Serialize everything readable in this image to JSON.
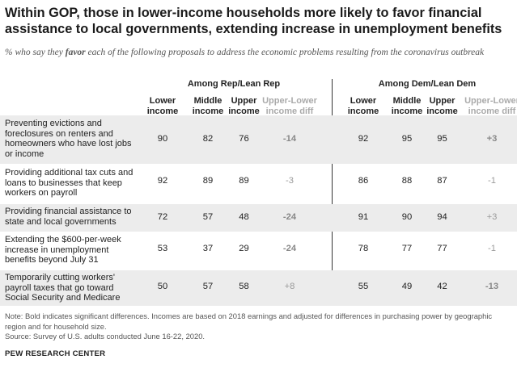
{
  "title": "Within GOP, those in lower-income households more likely to favor financial assistance to local governments, extending increase in unemployment benefits",
  "subtitle_pre": "% who say they ",
  "subtitle_em": "favor",
  "subtitle_post": " each of the following proposals to address the economic problems resulting from the coronavirus outbreak",
  "groups": {
    "rep": "Among Rep/Lean Rep",
    "dem": "Among Dem/Lean Dem"
  },
  "column_headers": [
    "Lower income",
    "Middle income",
    "Upper income",
    "Upper-Lower income diff"
  ],
  "footer": {
    "note": "Note: Bold indicates significant differences. Incomes are based on 2018 earnings and adjusted for differences in purchasing power by geographic region and for household size.",
    "source": "Source: Survey of U.S. adults conducted June 16-22, 2020.",
    "brand": "PEW RESEARCH CENTER"
  },
  "chart_data": {
    "type": "table",
    "title": "Within GOP, those in lower-income households more likely to favor financial assistance to local governments, extending increase in unemployment benefits",
    "columns": [
      "Lower income",
      "Middle income",
      "Upper income",
      "Upper-Lower income diff"
    ],
    "groups": [
      "Among Rep/Lean Rep",
      "Among Dem/Lean Dem"
    ],
    "rows": [
      {
        "label": "Preventing evictions and foreclosures on renters and homeowners who have lost jobs or income",
        "rep": [
          "90",
          "82",
          "76",
          "-14"
        ],
        "rep_diff_bold": true,
        "dem": [
          "92",
          "95",
          "95",
          "+3"
        ],
        "dem_diff_bold": true
      },
      {
        "label": "Providing additional tax cuts and loans to businesses that keep workers on payroll",
        "rep": [
          "92",
          "89",
          "89",
          "-3"
        ],
        "rep_diff_bold": false,
        "dem": [
          "86",
          "88",
          "87",
          "-1"
        ],
        "dem_diff_bold": false
      },
      {
        "label": "Providing financial assistance to state and local governments",
        "rep": [
          "72",
          "57",
          "48",
          "-24"
        ],
        "rep_diff_bold": true,
        "dem": [
          "91",
          "90",
          "94",
          "+3"
        ],
        "dem_diff_bold": false
      },
      {
        "label": "Extending the $600-per-week increase in unemployment benefits beyond July 31",
        "rep": [
          "53",
          "37",
          "29",
          "-24"
        ],
        "rep_diff_bold": true,
        "dem": [
          "78",
          "77",
          "77",
          "-1"
        ],
        "dem_diff_bold": false
      },
      {
        "label": "Temporarily cutting workers' payroll taxes that go toward Social Security and Medicare",
        "rep": [
          "50",
          "57",
          "58",
          "+8"
        ],
        "rep_diff_bold": false,
        "dem": [
          "55",
          "49",
          "42",
          "-13"
        ],
        "dem_diff_bold": true
      }
    ]
  }
}
